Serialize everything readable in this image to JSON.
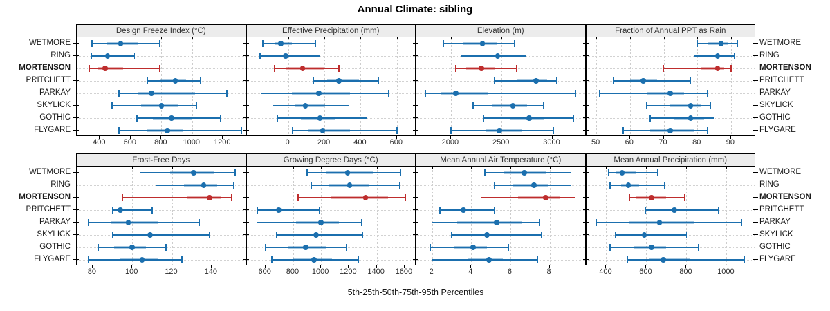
{
  "title": "Annual Climate: sibling",
  "caption": "5th-25th-50th-75th-95th Percentiles",
  "colors": {
    "series": "#1b6fae",
    "highlight": "#be2d2d",
    "strip_bg": "#ececec",
    "grid": "#cdcdcd",
    "border": "#000000",
    "text": "#2b2b2b"
  },
  "sites": [
    "WETMORE",
    "RING",
    "MORTENSON",
    "PRITCHETT",
    "PARKAY",
    "SKYLICK",
    "GOTHIC",
    "FLYGARE"
  ],
  "highlight_site": "MORTENSON",
  "chart_data": {
    "type": "dotplot-percentiles",
    "title": "Annual Climate: sibling",
    "xlabel": "5th-25th-50th-75th-95th Percentiles",
    "percentile_levels": [
      5,
      25,
      50,
      75,
      95
    ],
    "legend_position": "none",
    "grid": "dotted",
    "rows": [
      "WETMORE",
      "RING",
      "MORTENSON",
      "PRITCHETT",
      "PARKAY",
      "SKYLICK",
      "GOTHIC",
      "FLYGARE"
    ],
    "panels": [
      {
        "title": "Design Freeze Index (°C)",
        "row": 0,
        "col": 0,
        "domain": [
          250,
          1345
        ],
        "ticks": [
          400,
          600,
          800,
          1000,
          1200
        ],
        "values": [
          [
            350,
            450,
            535,
            650,
            790
          ],
          [
            345,
            400,
            450,
            530,
            625
          ],
          [
            330,
            385,
            435,
            550,
            790
          ],
          [
            710,
            790,
            890,
            960,
            1055
          ],
          [
            525,
            645,
            735,
            1020,
            1225
          ],
          [
            480,
            670,
            800,
            910,
            1030
          ],
          [
            640,
            745,
            865,
            1000,
            1185
          ],
          [
            525,
            705,
            840,
            940,
            1320
          ]
        ]
      },
      {
        "title": "Effective Precipitation (mm)",
        "row": 0,
        "col": 1,
        "domain": [
          -230,
          700
        ],
        "ticks": [
          0,
          200,
          400,
          600
        ],
        "values": [
          [
            -140,
            -75,
            -40,
            20,
            150
          ],
          [
            -155,
            -50,
            -15,
            25,
            175
          ],
          [
            -75,
            -15,
            80,
            195,
            280
          ],
          [
            140,
            215,
            280,
            390,
            500
          ],
          [
            -150,
            20,
            170,
            340,
            555
          ],
          [
            -85,
            40,
            95,
            205,
            335
          ],
          [
            -60,
            70,
            175,
            260,
            435
          ],
          [
            25,
            110,
            190,
            340,
            600
          ]
        ]
      },
      {
        "title": "Elevation (m)",
        "row": 0,
        "col": 2,
        "domain": [
          1660,
          3320
        ],
        "ticks": [
          2000,
          2500,
          3000
        ],
        "values": [
          [
            1930,
            2120,
            2310,
            2450,
            2630
          ],
          [
            2100,
            2290,
            2460,
            2560,
            2740
          ],
          [
            2050,
            2150,
            2300,
            2430,
            2650
          ],
          [
            2430,
            2650,
            2840,
            2950,
            3040
          ],
          [
            1750,
            1900,
            2050,
            2370,
            3230
          ],
          [
            2220,
            2400,
            2610,
            2750,
            2910
          ],
          [
            2320,
            2590,
            2770,
            2920,
            3210
          ],
          [
            2000,
            2340,
            2480,
            2700,
            3010
          ]
        ]
      },
      {
        "title": "Fraction of Annual PPT as Rain",
        "row": 0,
        "col": 3,
        "domain": [
          47,
          97
        ],
        "ticks": [
          50,
          60,
          70,
          80,
          90
        ],
        "values": [
          [
            80,
            83,
            87,
            89,
            92
          ],
          [
            79,
            83,
            86,
            88,
            91
          ],
          [
            70,
            81,
            86,
            88,
            90
          ],
          [
            55,
            60,
            64,
            68,
            78
          ],
          [
            51,
            65,
            72,
            76,
            83
          ],
          [
            65,
            72,
            78,
            81,
            84
          ],
          [
            66,
            73,
            78,
            82,
            85
          ],
          [
            58,
            66,
            72,
            79,
            83
          ]
        ]
      },
      {
        "title": "Frost-Free Days",
        "row": 1,
        "col": 0,
        "domain": [
          72,
          157
        ],
        "ticks": [
          80,
          100,
          120,
          140
        ],
        "values": [
          [
            104,
            119,
            131,
            141,
            152
          ],
          [
            112,
            126,
            136,
            143,
            151
          ],
          [
            95,
            128,
            139,
            145,
            150
          ],
          [
            90,
            92,
            94,
            100,
            110
          ],
          [
            78,
            89,
            98,
            113,
            134
          ],
          [
            90,
            98,
            109,
            119,
            139
          ],
          [
            83,
            91,
            100,
            107,
            117
          ],
          [
            78,
            94,
            105,
            113,
            125
          ]
        ]
      },
      {
        "title": "Growing Degree Days (°C)",
        "row": 1,
        "col": 1,
        "domain": [
          465,
          1675
        ],
        "ticks": [
          600,
          800,
          1000,
          1200,
          1400,
          1600
        ],
        "values": [
          [
            900,
            1040,
            1190,
            1370,
            1570
          ],
          [
            930,
            1060,
            1205,
            1340,
            1565
          ],
          [
            835,
            1070,
            1320,
            1480,
            1605
          ],
          [
            545,
            610,
            695,
            800,
            990
          ],
          [
            540,
            820,
            1000,
            1130,
            1290
          ],
          [
            680,
            830,
            965,
            1080,
            1300
          ],
          [
            600,
            760,
            890,
            1040,
            1180
          ],
          [
            645,
            800,
            950,
            1080,
            1270
          ]
        ]
      },
      {
        "title": "Mean Annual Air Temperature (°C)",
        "row": 1,
        "col": 2,
        "domain": [
          1.2,
          9.8
        ],
        "ticks": [
          2,
          4,
          6,
          8
        ],
        "values": [
          [
            4.7,
            5.7,
            6.7,
            7.8,
            9.1
          ],
          [
            5.2,
            6.1,
            7.2,
            7.9,
            9.1
          ],
          [
            4.5,
            6.4,
            7.8,
            8.5,
            9.3
          ],
          [
            2.4,
            3.0,
            3.6,
            4.2,
            5.2
          ],
          [
            2.0,
            3.3,
            5.3,
            6.6,
            7.5
          ],
          [
            3.0,
            4.0,
            4.8,
            5.7,
            7.6
          ],
          [
            1.9,
            3.1,
            4.1,
            4.8,
            5.9
          ],
          [
            2.0,
            3.8,
            4.9,
            5.6,
            7.4
          ]
        ]
      },
      {
        "title": "Mean Annual Precipitation (mm)",
        "row": 1,
        "col": 3,
        "domain": [
          300,
          1140
        ],
        "ticks": [
          400,
          600,
          800,
          1000
        ],
        "values": [
          [
            410,
            445,
            480,
            545,
            655
          ],
          [
            420,
            475,
            510,
            565,
            690
          ],
          [
            515,
            550,
            625,
            700,
            790
          ],
          [
            595,
            665,
            740,
            850,
            960
          ],
          [
            350,
            515,
            665,
            835,
            1075
          ],
          [
            445,
            525,
            590,
            665,
            800
          ],
          [
            420,
            540,
            625,
            700,
            860
          ],
          [
            505,
            615,
            685,
            820,
            1090
          ]
        ]
      }
    ]
  }
}
